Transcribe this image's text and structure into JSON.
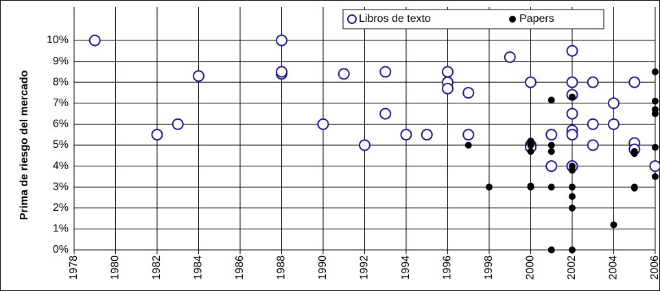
{
  "chart_data": {
    "type": "scatter",
    "y_label": "Prima de riesgo del mercado",
    "xlim": [
      1978,
      2006
    ],
    "xticks": [
      1978,
      1980,
      1982,
      1984,
      1986,
      1988,
      1990,
      1992,
      1994,
      1996,
      1998,
      2000,
      2002,
      2004,
      2006
    ],
    "ylim": [
      0,
      11.6
    ],
    "yticks": [
      {
        "value": 0,
        "label": "0%"
      },
      {
        "value": 1,
        "label": "1%"
      },
      {
        "value": 2,
        "label": "2%"
      },
      {
        "value": 3,
        "label": "3%"
      },
      {
        "value": 4,
        "label": "4%"
      },
      {
        "value": 5,
        "label": "5%"
      },
      {
        "value": 6,
        "label": "6%"
      },
      {
        "value": 7,
        "label": "7%"
      },
      {
        "value": 8,
        "label": "8%"
      },
      {
        "value": 9,
        "label": "9%"
      },
      {
        "value": 10,
        "label": "10%"
      }
    ],
    "grid": true,
    "legend": "top-right",
    "series": [
      {
        "name": "Libros de texto",
        "color": "#1a1a8c",
        "marker": "open",
        "x": [
          1979,
          1982,
          1983,
          1984,
          1988,
          1988,
          1988,
          1990,
          1991,
          1992,
          1993,
          1993,
          1994,
          1995,
          1996,
          1996,
          1996,
          1997,
          1997,
          1999,
          2000,
          2000,
          2000,
          2001,
          2001,
          2002,
          2002,
          2002,
          2002,
          2002,
          2002,
          2002,
          2002,
          2003,
          2003,
          2003,
          2004,
          2004,
          2005,
          2005,
          2005,
          2006
        ],
        "values": [
          10,
          5.5,
          6,
          8.3,
          8.4,
          8.5,
          10,
          6,
          8.4,
          5,
          8.5,
          6.5,
          5.5,
          5.5,
          8.5,
          8.0,
          7.7,
          7.5,
          5.5,
          9.2,
          8,
          5,
          4.9,
          5.5,
          4,
          9.5,
          8,
          7.4,
          6.5,
          5.7,
          5.5,
          4,
          4,
          8,
          6,
          5,
          7,
          6,
          8,
          5.1,
          4.8,
          4
        ]
      },
      {
        "name": "Papers",
        "color": "#000000",
        "marker": "filled",
        "x": [
          1997,
          1998,
          2000,
          2000,
          2000,
          2000,
          2000,
          2000,
          2001,
          2001,
          2001,
          2001,
          2001,
          2001,
          2002,
          2002,
          2002,
          2002,
          2002,
          2002,
          2002,
          2004,
          2005,
          2005,
          2005,
          2005,
          2006,
          2006,
          2006,
          2006,
          2006,
          2006
        ],
        "values": [
          5,
          3,
          5.2,
          5.1,
          5,
          4.7,
          3.05,
          3,
          7.15,
          5,
          4.7,
          3,
          0,
          0,
          7.3,
          4,
          3.8,
          3,
          2.55,
          2,
          0,
          1.2,
          4.7,
          4.6,
          3,
          2.95,
          8.5,
          7.1,
          6.7,
          6.5,
          4.9,
          3.5
        ]
      }
    ]
  }
}
